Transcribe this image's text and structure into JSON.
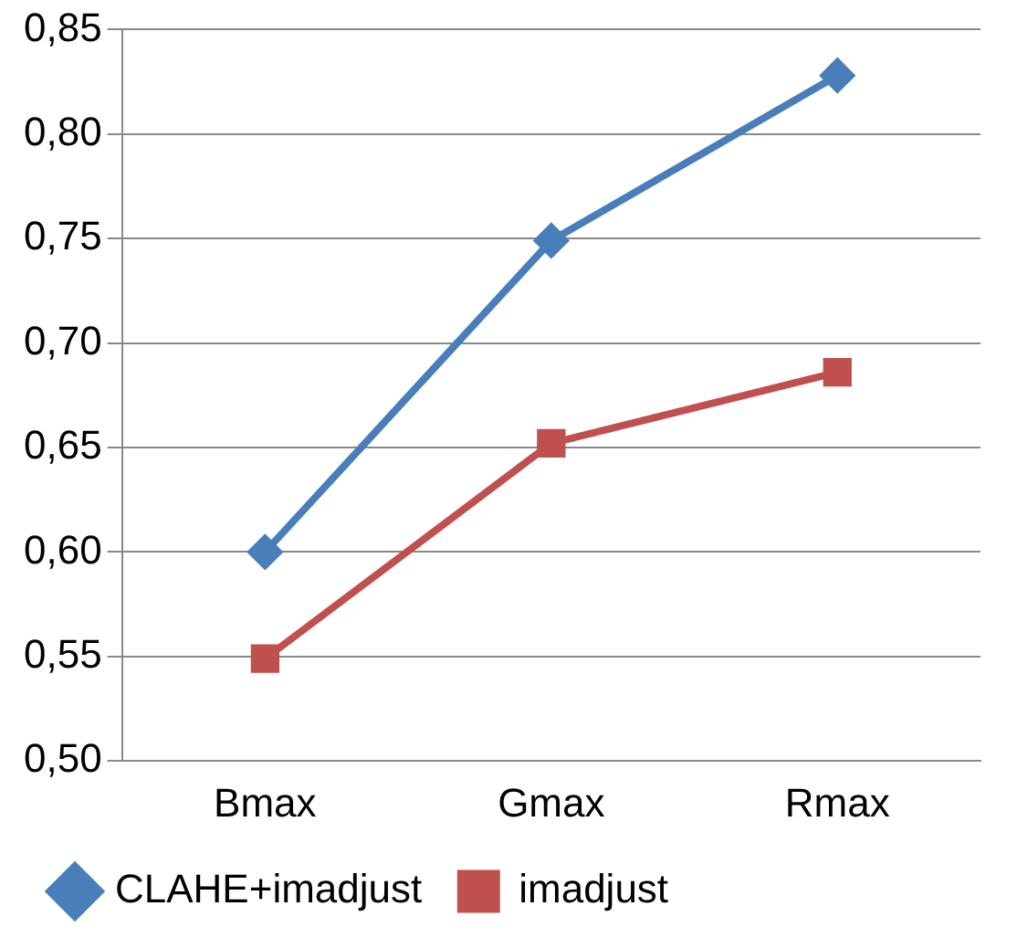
{
  "chart_data": {
    "type": "line",
    "categories": [
      "Bmax",
      "Gmax",
      "Rmax"
    ],
    "series": [
      {
        "name": "CLAHE+imadjust",
        "color": "#4a7ebb",
        "marker": "diamond",
        "values": [
          0.6,
          0.749,
          0.828
        ]
      },
      {
        "name": "imadjust",
        "color": "#c0504d",
        "marker": "square",
        "values": [
          0.549,
          0.652,
          0.686
        ]
      }
    ],
    "ylim": [
      0.5,
      0.85
    ],
    "yticks": [
      {
        "value": 0.5,
        "label": "0,50"
      },
      {
        "value": 0.55,
        "label": "0,55"
      },
      {
        "value": 0.6,
        "label": "0,60"
      },
      {
        "value": 0.65,
        "label": "0,65"
      },
      {
        "value": 0.7,
        "label": "0,70"
      },
      {
        "value": 0.75,
        "label": "0,75"
      },
      {
        "value": 0.8,
        "label": "0,80"
      },
      {
        "value": 0.85,
        "label": "0,85"
      }
    ],
    "grid": "y",
    "legend": "bottom",
    "line_style": "solid"
  }
}
